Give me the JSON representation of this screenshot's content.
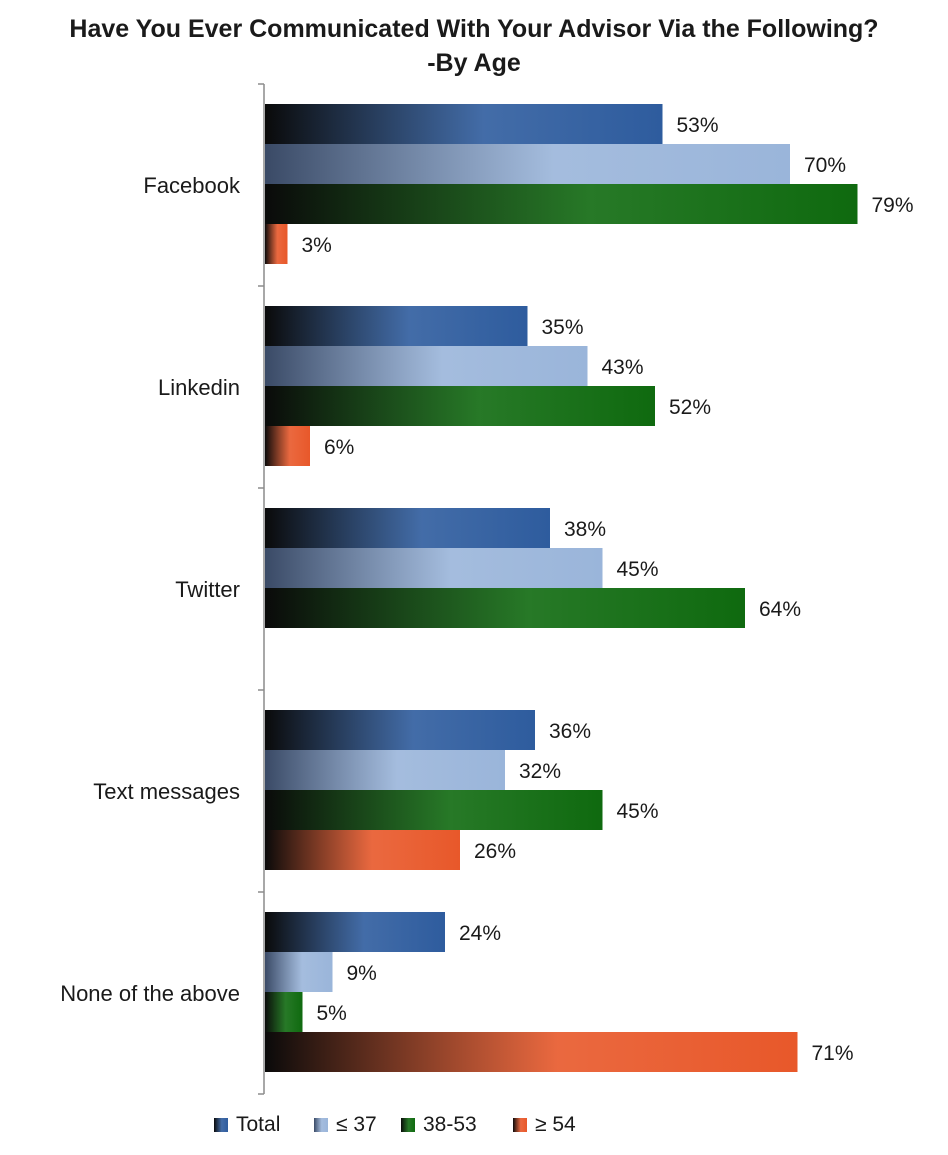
{
  "chart_data": {
    "type": "bar",
    "orientation": "horizontal",
    "title": "Have You Ever Communicated With Your Advisor Via the Following?",
    "subtitle": "-By Age",
    "categories": [
      "Facebook",
      "Linkedin",
      "Twitter",
      "Text messages",
      "None of the above"
    ],
    "series": [
      {
        "name": "Total",
        "color": "#2e5c9e",
        "values": [
          53,
          35,
          38,
          36,
          24
        ]
      },
      {
        "name": "≤ 37",
        "color": "#9ab5da",
        "values": [
          70,
          43,
          45,
          32,
          9
        ]
      },
      {
        "name": "38-53",
        "color": "#0f6a0f",
        "values": [
          79,
          52,
          64,
          45,
          5
        ]
      },
      {
        "name": "≥ 54",
        "color": "#e8582a",
        "values": [
          3,
          6,
          null,
          26,
          71
        ]
      }
    ],
    "value_suffix": "%",
    "xlim": [
      0,
      100
    ],
    "grid": false,
    "legend_position": "bottom"
  }
}
